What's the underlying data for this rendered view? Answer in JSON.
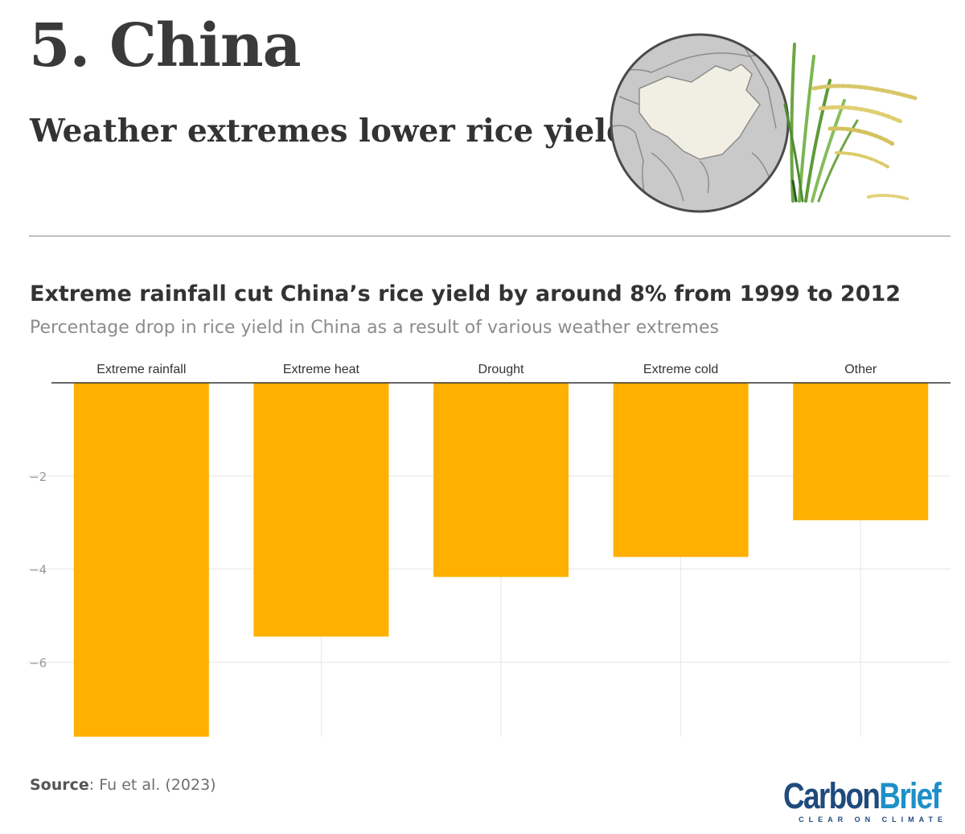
{
  "header": {
    "title": "5. China",
    "subtitle": "Weather extremes lower rice yield"
  },
  "chart_data": {
    "type": "bar",
    "title": "Extreme rainfall cut China’s rice yield by around 8% from 1999 to 2012",
    "subtitle": "Percentage drop in rice yield in China as a result of various weather extremes",
    "categories": [
      "Extreme rainfall",
      "Extreme heat",
      "Drought",
      "Extreme cold",
      "Other"
    ],
    "values": [
      -7.6,
      -5.45,
      -4.17,
      -3.74,
      -2.95
    ],
    "yticks": [
      -2,
      -4,
      -6
    ],
    "ytick_labels": [
      "−2",
      "−4",
      "−6"
    ],
    "ylim": [
      -7.6,
      0
    ],
    "xlabel": "",
    "ylabel": "",
    "color": "#FFB000",
    "grid": true
  },
  "footer": {
    "source_label": "Source",
    "source_text": ": Fu et al. (2023)"
  },
  "logo": {
    "carbon": "Carbon",
    "brief": "Brief",
    "tagline": "CLEAR ON CLIMATE"
  }
}
